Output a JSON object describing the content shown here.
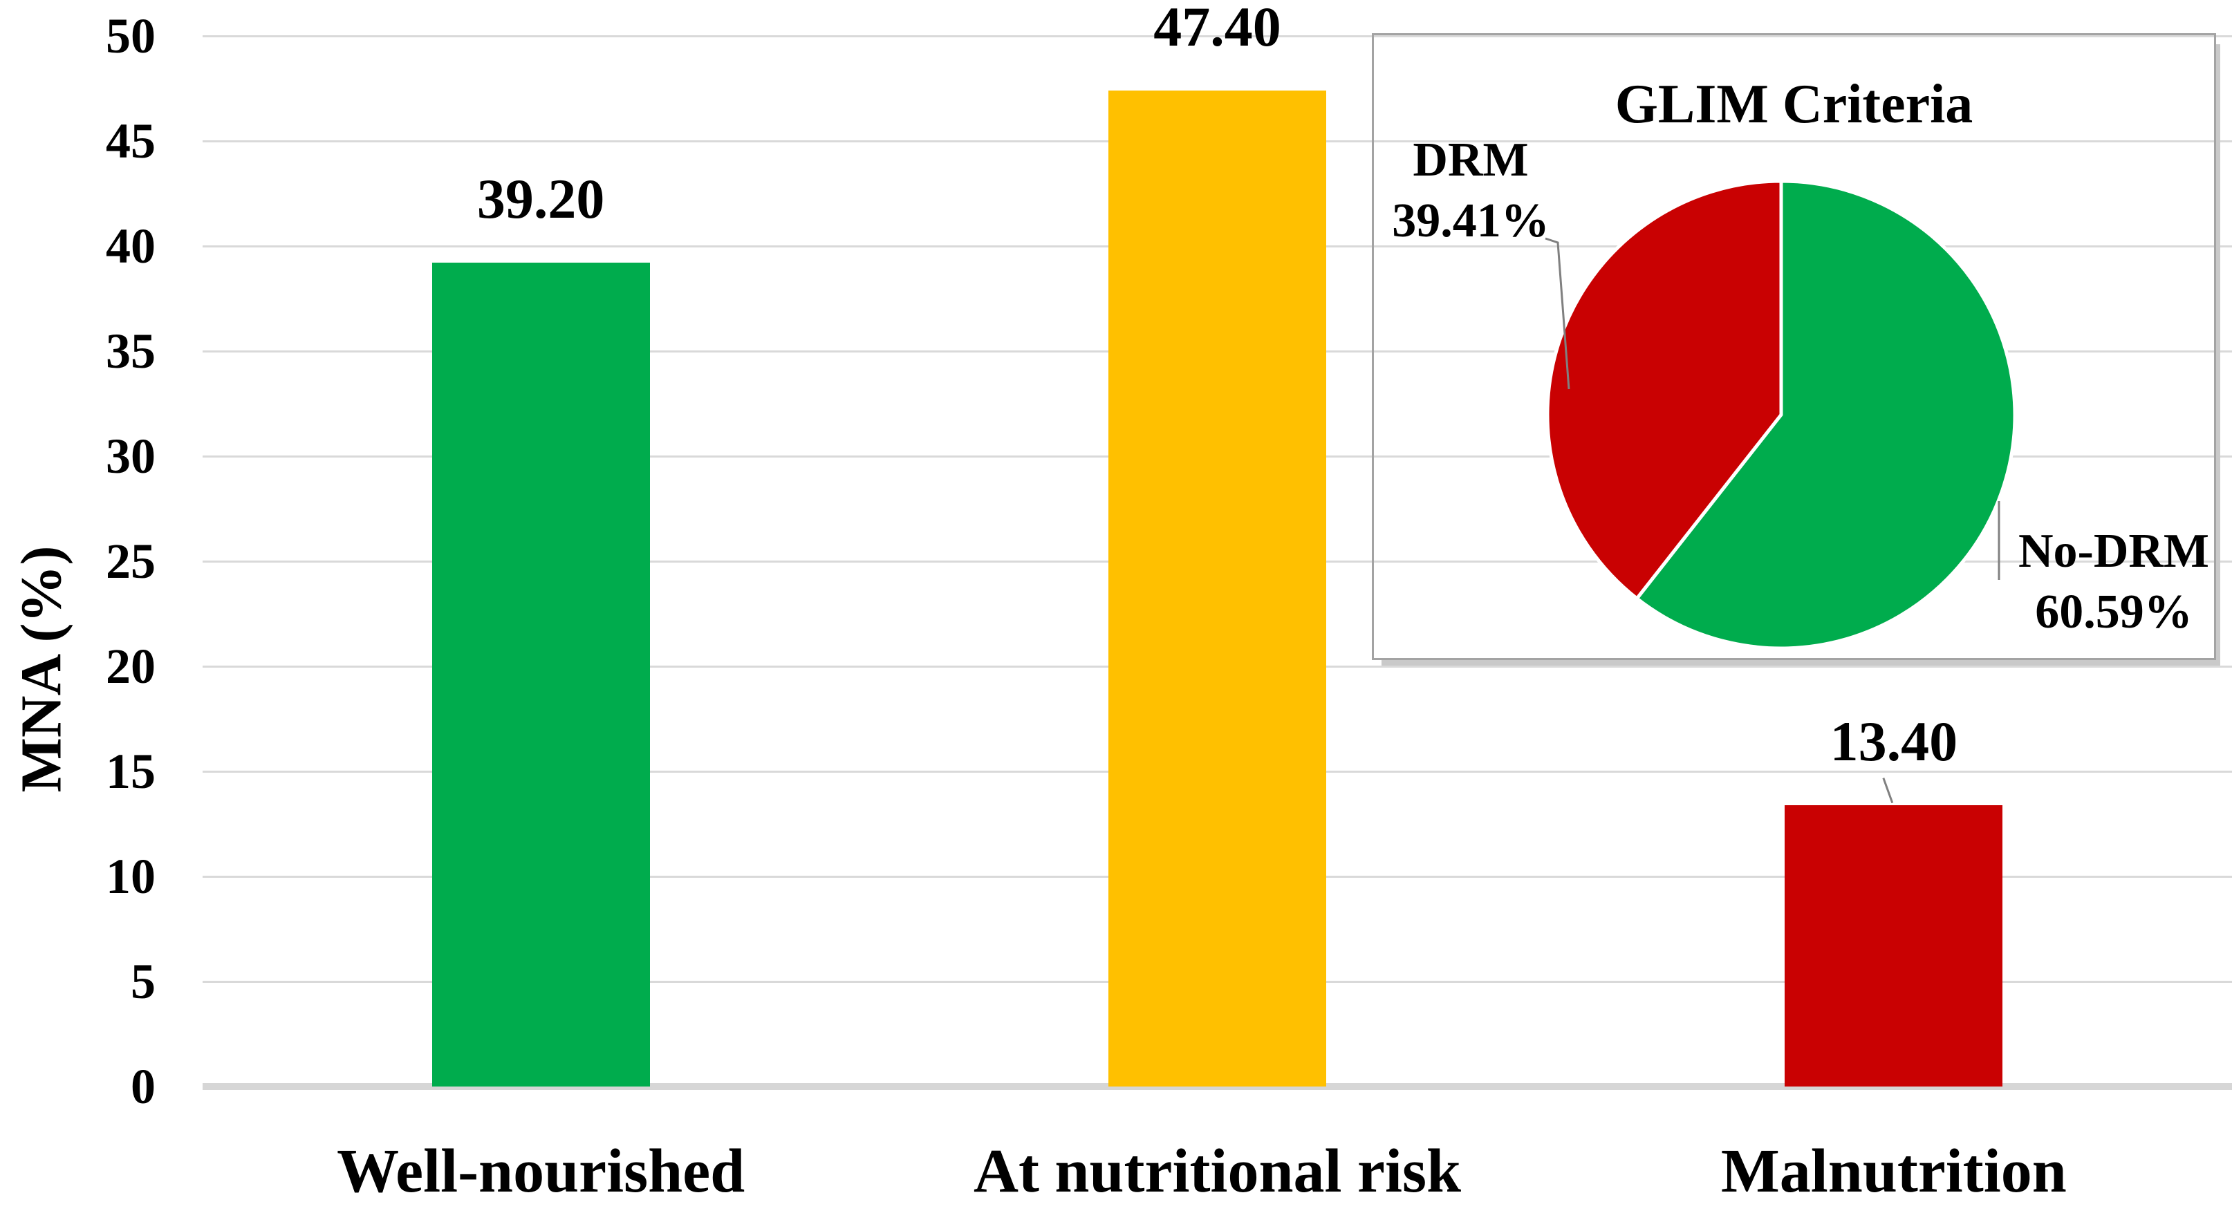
{
  "colors": {
    "green": "#00AC4D",
    "yellow": "#FFC000",
    "red": "#C90102",
    "gridline": "#D9D9D9",
    "inset_border": "#A3A3A3",
    "leader_line": "#808080",
    "text": "#000000"
  },
  "chart_data": [
    {
      "type": "bar",
      "title": "",
      "xlabel": "",
      "ylabel": "MNA (%)",
      "categories": [
        "Well-nourished",
        "At nutritional risk",
        "Malnutrition"
      ],
      "values": [
        39.2,
        47.4,
        13.4
      ],
      "value_labels": [
        "39.20",
        "47.40",
        "13.40"
      ],
      "value_label_leaders": [
        false,
        false,
        true
      ],
      "bar_colors": [
        "#00AC4D",
        "#FFC000",
        "#C90102"
      ],
      "ylim": [
        0,
        50
      ],
      "yticks": [
        0,
        5,
        10,
        15,
        20,
        25,
        30,
        35,
        40,
        45,
        50
      ],
      "grid": true,
      "legend": false
    },
    {
      "type": "pie",
      "title": "GLIM Criteria",
      "slices": [
        {
          "label": "No-DRM",
          "value": 60.59,
          "value_label": "60.59%",
          "color": "#00AC4D"
        },
        {
          "label": "DRM",
          "value": 39.41,
          "value_label": "39.41%",
          "color": "#C90102"
        }
      ],
      "start_angle_deg": 0,
      "direction": "clockwise",
      "legend": "callout labels with leader lines"
    }
  ]
}
